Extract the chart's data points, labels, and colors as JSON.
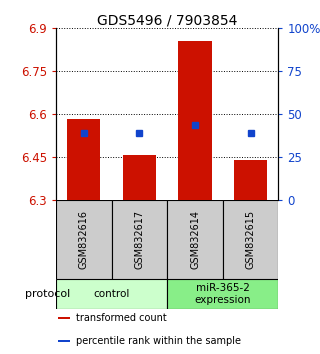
{
  "title": "GDS5496 / 7903854",
  "samples": [
    "GSM832616",
    "GSM832617",
    "GSM832614",
    "GSM832615"
  ],
  "bar_values": [
    6.585,
    6.46,
    6.855,
    6.44
  ],
  "bar_base": 6.3,
  "blue_values": [
    6.535,
    6.535,
    6.563,
    6.535
  ],
  "bar_color": "#cc1100",
  "blue_color": "#1144cc",
  "ylim_left": [
    6.3,
    6.9
  ],
  "yticks_left": [
    6.3,
    6.45,
    6.6,
    6.75,
    6.9
  ],
  "yticks_right": [
    0,
    25,
    50,
    75,
    100
  ],
  "ylim_right": [
    0,
    100
  ],
  "groups": [
    {
      "label": "control",
      "samples": [
        0,
        1
      ],
      "color": "#ccffcc"
    },
    {
      "label": "miR-365-2\nexpression",
      "samples": [
        2,
        3
      ],
      "color": "#88ee88"
    }
  ],
  "protocol_label": "protocol",
  "legend_items": [
    {
      "color": "#cc1100",
      "label": "transformed count"
    },
    {
      "color": "#1144cc",
      "label": "percentile rank within the sample"
    }
  ],
  "bar_width": 0.6,
  "blue_marker_size": 5,
  "sample_box_color": "#cccccc",
  "left_label_color": "#cc1100",
  "right_label_color": "#1144cc"
}
